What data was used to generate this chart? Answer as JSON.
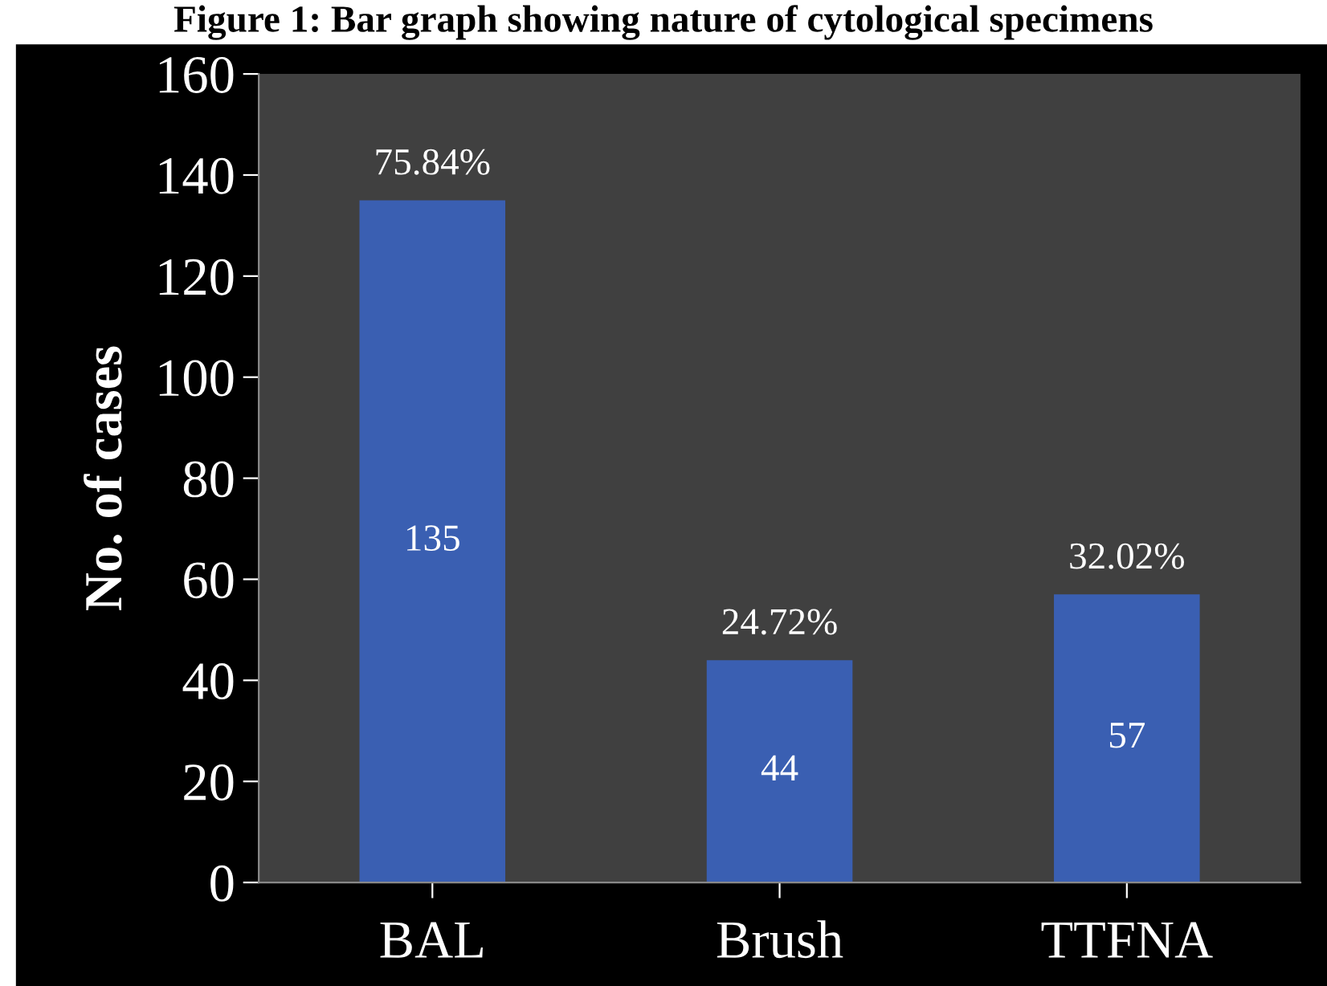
{
  "chart_data": {
    "type": "bar",
    "title": "Figure 1: Bar graph showing nature of cytological specimens",
    "ylabel": "No. of cases",
    "categories": [
      "BAL",
      "Brush",
      "TTFNA"
    ],
    "values": [
      135,
      44,
      57
    ],
    "color": "#3a5fb2",
    "data_labels": true,
    "annotations": [
      {
        "text": "75.84%",
        "x": "BAL",
        "y": 135
      },
      {
        "text": "24.72%",
        "x": "Brush",
        "y": 44
      },
      {
        "text": "32.02%",
        "x": "TTFNA",
        "y": 57
      }
    ],
    "ylim": [
      0,
      160
    ],
    "yticks": [
      0,
      20,
      40,
      60,
      80,
      100,
      120,
      140,
      160
    ],
    "grid": false,
    "legend": false
  }
}
